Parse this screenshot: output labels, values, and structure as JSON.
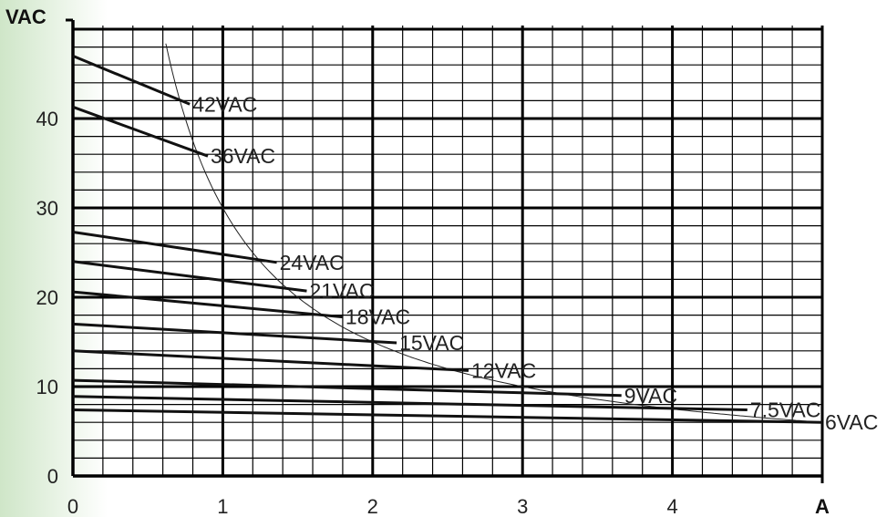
{
  "colors": {
    "gradient": "#cfe6c8",
    "grid": "#000000",
    "series": "#111111",
    "curve": "#222222"
  },
  "chart_data": {
    "type": "line",
    "xlabel": "A",
    "ylabel": "VAC",
    "xlim": [
      0,
      5
    ],
    "ylim": [
      0,
      50
    ],
    "xticks": [
      "0",
      "1",
      "2",
      "3",
      "4"
    ],
    "yticks": [
      "0",
      "10",
      "20",
      "30",
      "40"
    ],
    "grid": true,
    "series": [
      {
        "name": "42VAC",
        "x": [
          0,
          0.78
        ],
        "y": [
          47.0,
          41.6
        ]
      },
      {
        "name": "36VAC",
        "x": [
          0,
          0.9
        ],
        "y": [
          41.3,
          35.8
        ]
      },
      {
        "name": "24VAC",
        "x": [
          0,
          1.36
        ],
        "y": [
          27.3,
          23.9
        ]
      },
      {
        "name": "21VAC",
        "x": [
          0,
          1.56
        ],
        "y": [
          24.0,
          20.7
        ]
      },
      {
        "name": "18VAC",
        "x": [
          0,
          1.8
        ],
        "y": [
          20.6,
          17.8
        ]
      },
      {
        "name": "15VAC",
        "x": [
          0,
          2.16
        ],
        "y": [
          17.0,
          14.9
        ]
      },
      {
        "name": "12VAC",
        "x": [
          0,
          2.64
        ],
        "y": [
          14.0,
          11.8
        ]
      },
      {
        "name": "9VAC",
        "x": [
          0,
          3.66
        ],
        "y": [
          10.7,
          9.0
        ]
      },
      {
        "name": "7.5VAC",
        "x": [
          0,
          4.5
        ],
        "y": [
          8.9,
          7.4
        ]
      },
      {
        "name": "6VAC",
        "x": [
          0,
          5.0
        ],
        "y": [
          7.4,
          6.0
        ]
      }
    ],
    "power_curve": {
      "va": 30,
      "x_start": 0.62
    }
  }
}
